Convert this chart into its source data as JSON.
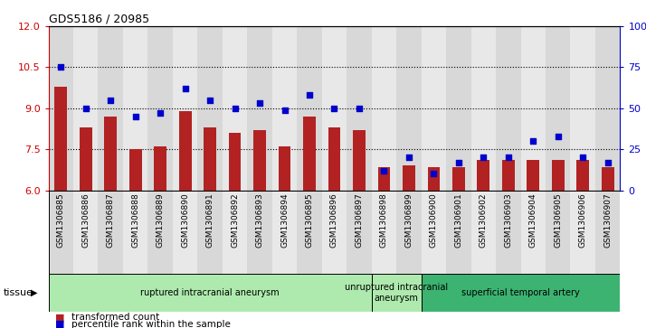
{
  "title": "GDS5186 / 20985",
  "samples": [
    "GSM1306885",
    "GSM1306886",
    "GSM1306887",
    "GSM1306888",
    "GSM1306889",
    "GSM1306890",
    "GSM1306891",
    "GSM1306892",
    "GSM1306893",
    "GSM1306894",
    "GSM1306895",
    "GSM1306896",
    "GSM1306897",
    "GSM1306898",
    "GSM1306899",
    "GSM1306900",
    "GSM1306901",
    "GSM1306902",
    "GSM1306903",
    "GSM1306904",
    "GSM1306905",
    "GSM1306906",
    "GSM1306907"
  ],
  "transformed_count": [
    9.8,
    8.3,
    8.7,
    7.5,
    7.6,
    8.9,
    8.3,
    8.1,
    8.2,
    7.6,
    8.7,
    8.3,
    8.2,
    6.85,
    6.9,
    6.85,
    6.85,
    7.1,
    7.1,
    7.1,
    7.1,
    7.1,
    6.85
  ],
  "percentile_rank": [
    75,
    50,
    55,
    45,
    47,
    62,
    55,
    50,
    53,
    49,
    58,
    50,
    50,
    12,
    20,
    10,
    17,
    20,
    20,
    30,
    33,
    20,
    17
  ],
  "groups": [
    {
      "label": "ruptured intracranial aneurysm",
      "start": 0,
      "end": 13,
      "color": "#AEEAAE"
    },
    {
      "label": "unruptured intracranial\naneurysm",
      "start": 13,
      "end": 15,
      "color": "#AEEAAE"
    },
    {
      "label": "superficial temporal artery",
      "start": 15,
      "end": 23,
      "color": "#3CB371"
    }
  ],
  "bar_color": "#B22222",
  "dot_color": "#0000CC",
  "ylim_left": [
    6,
    12
  ],
  "ylim_right": [
    0,
    100
  ],
  "yticks_left": [
    6,
    7.5,
    9.0,
    10.5,
    12
  ],
  "yticks_right": [
    0,
    25,
    50,
    75,
    100
  ],
  "ylabel_left_color": "#CC0000",
  "ylabel_right_color": "#0000CC",
  "legend_bar_label": "transformed count",
  "legend_dot_label": "percentile rank within the sample",
  "tissue_label": "tissue",
  "col_bg_even": "#D8D8D8",
  "col_bg_odd": "#E8E8E8",
  "plot_bg_color": "#FFFFFF"
}
